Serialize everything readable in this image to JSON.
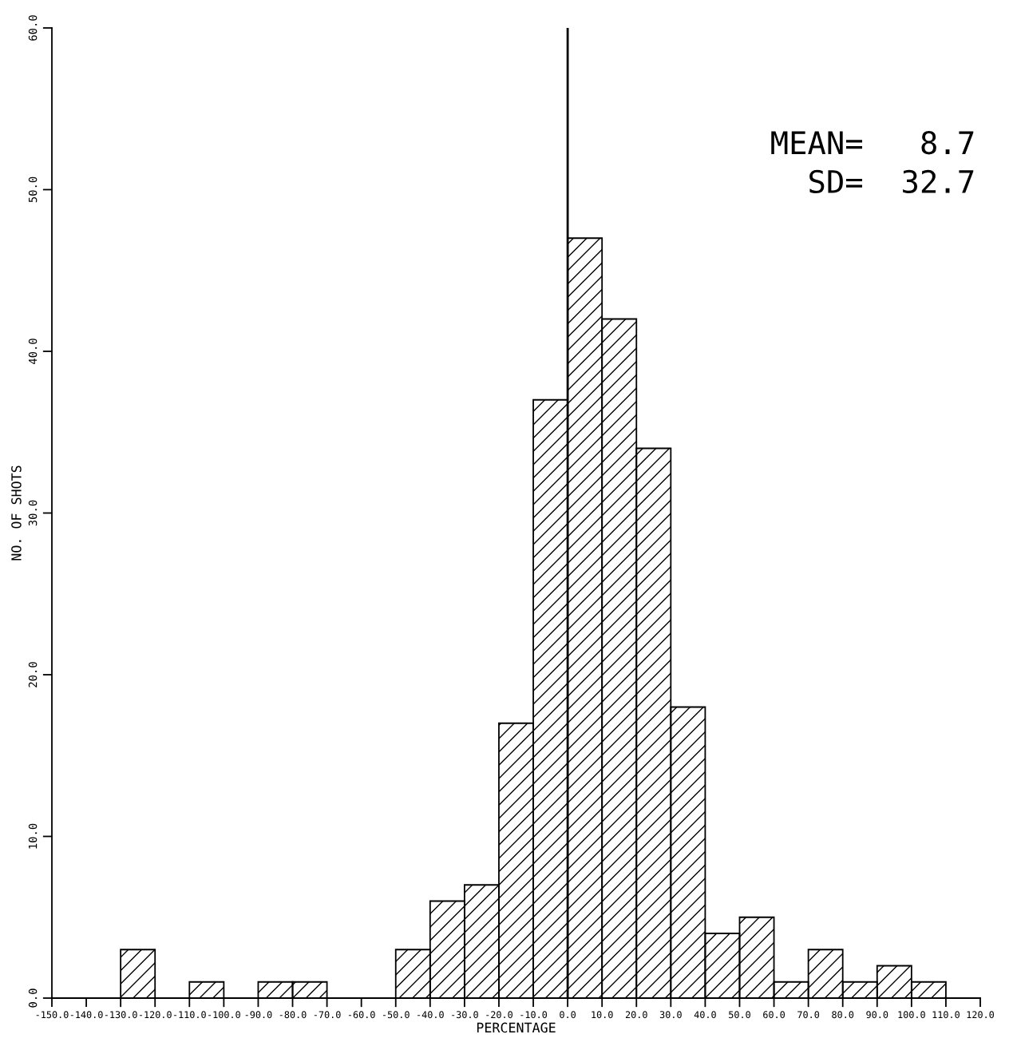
{
  "chart_data": {
    "type": "histogram",
    "xlabel": "PERCENTAGE",
    "ylabel": "NO. OF SHOTS",
    "bins": [
      -130,
      -120,
      -110,
      -100,
      -90,
      -80,
      -70,
      -60,
      -50,
      -40,
      -30,
      -20,
      -10,
      0,
      10,
      20,
      30,
      40,
      50,
      60,
      70,
      80,
      90,
      100,
      110
    ],
    "values": [
      3,
      0,
      1,
      0,
      1,
      1,
      0,
      0,
      3,
      6,
      7,
      17,
      37,
      47,
      42,
      34,
      18,
      4,
      5,
      1,
      3,
      1,
      2,
      1
    ],
    "color": "#000000",
    "xlim": [
      -150,
      120
    ],
    "xticks": [
      {
        "value": -150,
        "label": "-150.0"
      },
      {
        "value": -140,
        "label": "-140.0"
      },
      {
        "value": -130,
        "label": "-130.0"
      },
      {
        "value": -120,
        "label": "-120.0"
      },
      {
        "value": -110,
        "label": "-110.0"
      },
      {
        "value": -100,
        "label": "-100.0"
      },
      {
        "value": -90,
        "label": "-90.0"
      },
      {
        "value": -80,
        "label": "-80.0"
      },
      {
        "value": -70,
        "label": "-70.0"
      },
      {
        "value": -60,
        "label": "-60.0"
      },
      {
        "value": -50,
        "label": "-50.0"
      },
      {
        "value": -40,
        "label": "-40.0"
      },
      {
        "value": -30,
        "label": "-30.0"
      },
      {
        "value": -20,
        "label": "-20.0"
      },
      {
        "value": -10,
        "label": "-10.0"
      },
      {
        "value": 0,
        "label": "0.0"
      },
      {
        "value": 10,
        "label": "10.0"
      },
      {
        "value": 20,
        "label": "20.0"
      },
      {
        "value": 30,
        "label": "30.0"
      },
      {
        "value": 40,
        "label": "40.0"
      },
      {
        "value": 50,
        "label": "50.0"
      },
      {
        "value": 60,
        "label": "60.0"
      },
      {
        "value": 70,
        "label": "70.0"
      },
      {
        "value": 80,
        "label": "80.0"
      },
      {
        "value": 90,
        "label": "90.0"
      },
      {
        "value": 100,
        "label": "100.0"
      },
      {
        "value": 110,
        "label": "110.0"
      },
      {
        "value": 120,
        "label": "120.0"
      }
    ],
    "ylim": [
      0,
      60
    ],
    "yticks": [
      {
        "value": 0,
        "label": "0.0"
      },
      {
        "value": 10,
        "label": "10.0"
      },
      {
        "value": 20,
        "label": "20.0"
      },
      {
        "value": 30,
        "label": "30.0"
      },
      {
        "value": 40,
        "label": "40.0"
      },
      {
        "value": 50,
        "label": "50.0"
      },
      {
        "value": 60,
        "label": "60.0"
      }
    ],
    "ref_lines": [
      {
        "axis": "x",
        "value": 0,
        "color": "#000000"
      }
    ],
    "annotations": [
      "MEAN=   8.7",
      "SD=  32.7"
    ],
    "grid": false,
    "legend": false
  }
}
